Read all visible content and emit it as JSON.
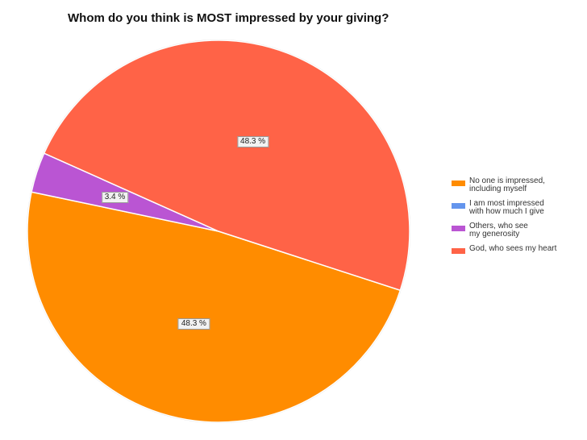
{
  "chart_data": {
    "type": "pie",
    "title": "Whom do you think is MOST impressed by your giving?",
    "slices": [
      {
        "label": "No one is impressed,\nincluding myself",
        "value": 48.3,
        "label_text": "48.3 %",
        "color": "#ff8c00"
      },
      {
        "label": "I am most impressed\nwith how much I give",
        "value": 0.0,
        "label_text": "",
        "color": "#6495ed"
      },
      {
        "label": "Others, who see\nmy generosity",
        "value": 3.4,
        "label_text": "3.4 %",
        "color": "#ba55d3"
      },
      {
        "label": "God, who sees my heart",
        "value": 48.3,
        "label_text": "48.3 %",
        "color": "#ff6347"
      }
    ],
    "legend_position": "right"
  }
}
